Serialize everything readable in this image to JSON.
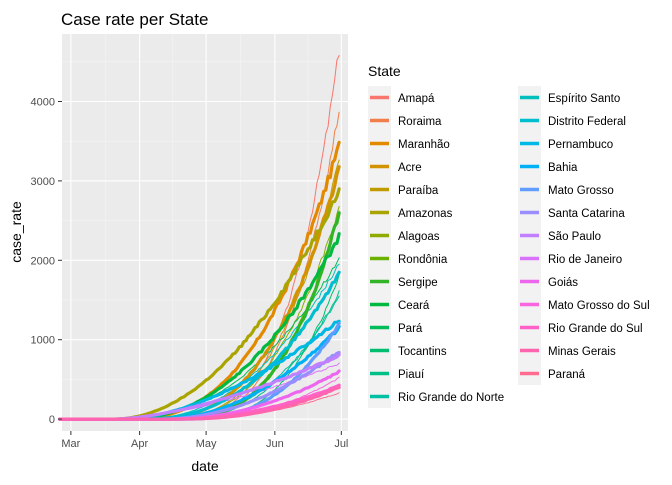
{
  "chart_data": {
    "type": "line",
    "title": "Case rate per State",
    "xlabel": "date",
    "ylabel": "case_rate",
    "x_ticks": [
      "Mar",
      "Apr",
      "May",
      "Jun",
      "Jul"
    ],
    "x_tick_dates": [
      "2020-03-01",
      "2020-04-01",
      "2020-05-01",
      "2020-06-01",
      "2020-07-01"
    ],
    "x_range": [
      "2020-02-26",
      "2020-07-04"
    ],
    "y_ticks": [
      0,
      1000,
      2000,
      3000,
      4000
    ],
    "ylim": [
      -150,
      4850
    ],
    "grid": true,
    "legend_title": "State",
    "legend_position": "right",
    "series_start": "2020-02-25",
    "series_end": "2020-06-30",
    "series": [
      {
        "name": "Amapá",
        "color": "#F8766D",
        "final_value": 4650,
        "growth_start": "2020-04-08",
        "shape": 3.6,
        "thick": false
      },
      {
        "name": "Roraima",
        "color": "#F07F4C",
        "final_value": 3900,
        "growth_start": "2020-04-10",
        "shape": 3.5,
        "thick": false
      },
      {
        "name": "Maranhão",
        "color": "#E38900",
        "final_value": 3450,
        "growth_start": "2020-03-25",
        "shape": 2.6,
        "thick": true
      },
      {
        "name": "Acre",
        "color": "#D39200",
        "final_value": 3150,
        "growth_start": "2020-04-01",
        "shape": 2.9,
        "thick": true
      },
      {
        "name": "Paraíba",
        "color": "#C09B00",
        "final_value": 3250,
        "growth_start": "2020-04-05",
        "shape": 3.1,
        "thick": false
      },
      {
        "name": "Amazonas",
        "color": "#A9A400",
        "final_value": 2880,
        "growth_start": "2020-03-20",
        "shape": 2.0,
        "thick": true
      },
      {
        "name": "Alagoas",
        "color": "#8EAB00",
        "final_value": 2650,
        "growth_start": "2020-04-08",
        "shape": 2.8,
        "thick": false
      },
      {
        "name": "Rondônia",
        "color": "#6BB100",
        "final_value": 2600,
        "growth_start": "2020-04-12",
        "shape": 3.0,
        "thick": false
      },
      {
        "name": "Sergipe",
        "color": "#31B425",
        "final_value": 2600,
        "growth_start": "2020-04-10",
        "shape": 3.2,
        "thick": true
      },
      {
        "name": "Ceará",
        "color": "#00B93E",
        "final_value": 2300,
        "growth_start": "2020-03-25",
        "shape": 2.2,
        "thick": true
      },
      {
        "name": "Pará",
        "color": "#00BC59",
        "final_value": 2000,
        "growth_start": "2020-03-28",
        "shape": 2.1,
        "thick": false
      },
      {
        "name": "Tocantins",
        "color": "#00BE70",
        "final_value": 1800,
        "growth_start": "2020-04-20",
        "shape": 3.0,
        "thick": false
      },
      {
        "name": "Piauí",
        "color": "#00C087",
        "final_value": 1600,
        "growth_start": "2020-04-15",
        "shape": 2.6,
        "thick": false
      },
      {
        "name": "Rio Grande do Norte",
        "color": "#00C0A3",
        "final_value": 1550,
        "growth_start": "2020-04-12",
        "shape": 2.5,
        "thick": false
      },
      {
        "name": "Espírito Santo",
        "color": "#00BFBC",
        "final_value": 1950,
        "growth_start": "2020-04-01",
        "shape": 2.2,
        "thick": false
      },
      {
        "name": "Distrito Federal",
        "color": "#00BDD0",
        "final_value": 1850,
        "growth_start": "2020-04-01",
        "shape": 2.4,
        "thick": true
      },
      {
        "name": "Pernambuco",
        "color": "#00B8E5",
        "final_value": 1250,
        "growth_start": "2020-03-25",
        "shape": 1.7,
        "thick": true
      },
      {
        "name": "Bahia",
        "color": "#00B0F6",
        "final_value": 1150,
        "growth_start": "2020-04-10",
        "shape": 2.0,
        "thick": true
      },
      {
        "name": "Mato Grosso",
        "color": "#619CFF",
        "final_value": 1200,
        "growth_start": "2020-04-20",
        "shape": 2.6,
        "thick": true
      },
      {
        "name": "Santa Catarina",
        "color": "#9A8EFF",
        "final_value": 850,
        "growth_start": "2020-04-10",
        "shape": 2.0,
        "thick": true
      },
      {
        "name": "São Paulo",
        "color": "#C27FFF",
        "final_value": 800,
        "growth_start": "2020-03-20",
        "shape": 1.6,
        "thick": true
      },
      {
        "name": "Rio de Janeiro",
        "color": "#DB72FB",
        "final_value": 700,
        "growth_start": "2020-03-20",
        "shape": 1.6,
        "thick": false
      },
      {
        "name": "Goiás",
        "color": "#ED67EE",
        "final_value": 600,
        "growth_start": "2020-04-15",
        "shape": 2.0,
        "thick": true
      },
      {
        "name": "Mato Grosso do Sul",
        "color": "#F964E0",
        "final_value": 520,
        "growth_start": "2020-04-20",
        "shape": 2.3,
        "thick": false
      },
      {
        "name": "Rio Grande do Sul",
        "color": "#FF61C9",
        "final_value": 420,
        "growth_start": "2020-04-15",
        "shape": 2.0,
        "thick": true
      },
      {
        "name": "Minas Gerais",
        "color": "#FF65AE",
        "final_value": 400,
        "growth_start": "2020-04-20",
        "shape": 2.2,
        "thick": true
      },
      {
        "name": "Paraná",
        "color": "#FF6C90",
        "final_value": 330,
        "growth_start": "2020-04-20",
        "shape": 2.1,
        "thick": false
      }
    ]
  }
}
